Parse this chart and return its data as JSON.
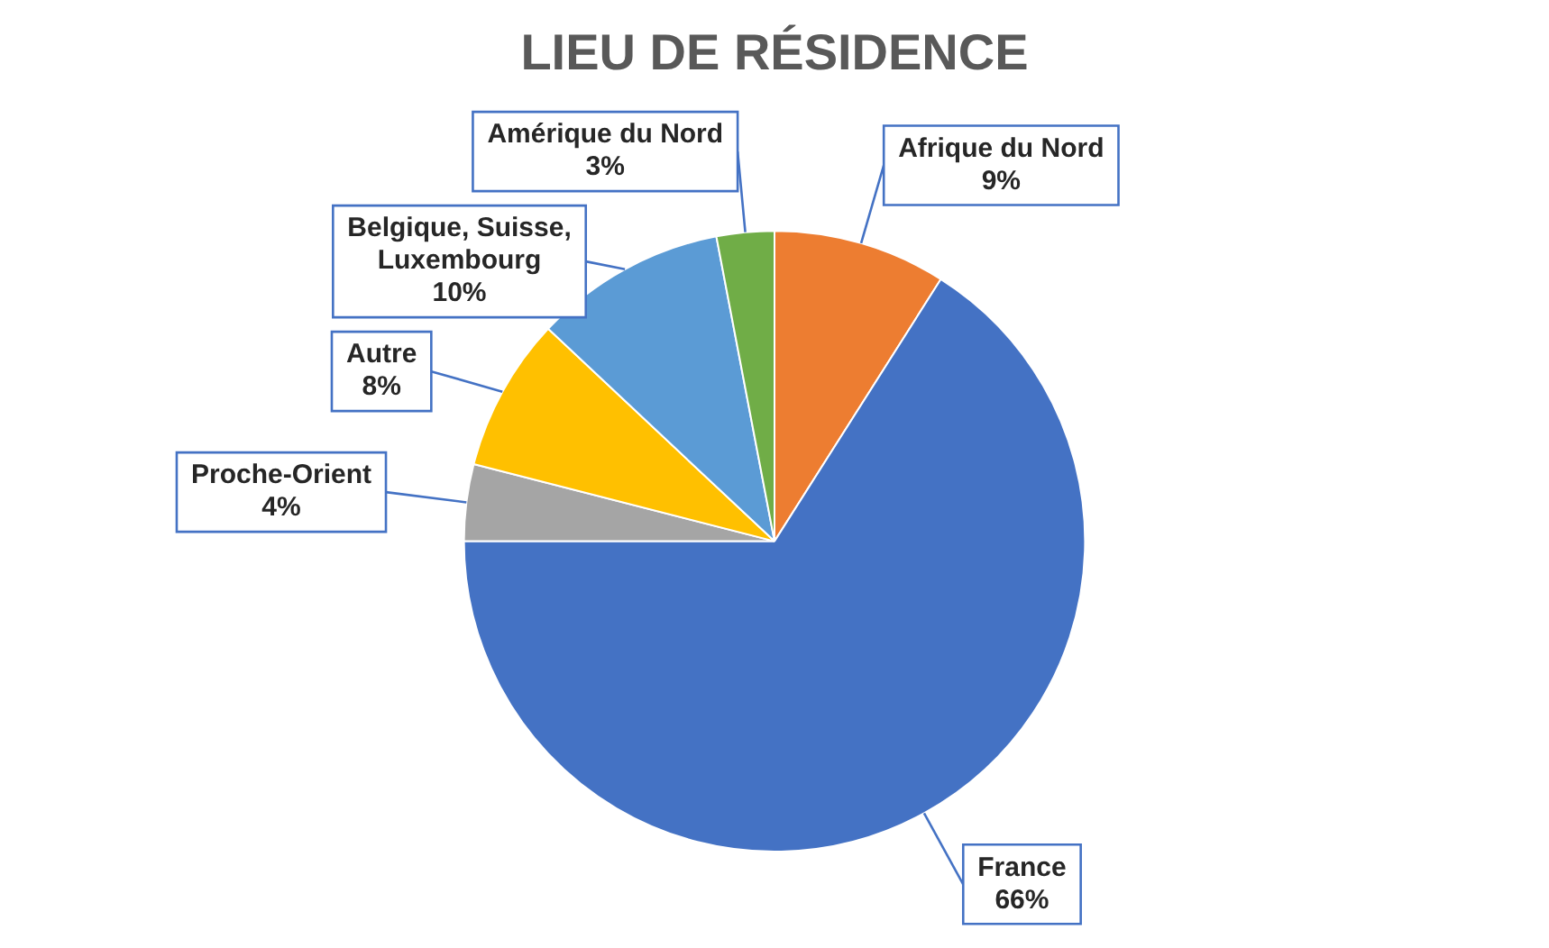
{
  "chart_data": {
    "type": "pie",
    "title": "LIEU DE RÉSIDENCE",
    "categories": [
      "Afrique du Nord",
      "France",
      "Proche-Orient",
      "Autre",
      "Belgique, Suisse, Luxembourg",
      "Amérique du Nord"
    ],
    "values": [
      9,
      66,
      4,
      8,
      10,
      3
    ],
    "colors": [
      "#ed7d31",
      "#4472c4",
      "#a5a5a5",
      "#ffc000",
      "#5b9bd5",
      "#70ad47"
    ],
    "value_labels": [
      "9%",
      "66%",
      "4%",
      "8%",
      "10%",
      "3%"
    ]
  }
}
